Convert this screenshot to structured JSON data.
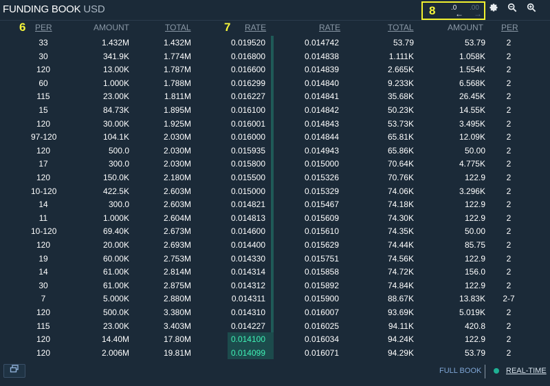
{
  "header": {
    "title": "FUNDING BOOK",
    "currency": "USD",
    "annotation_precision": "8",
    "precision_decrease": ".0",
    "precision_increase": ".00",
    "precision_decrease_arrow": "←",
    "precision_increase_arrow": "→",
    "icons": [
      "gear-icon",
      "zoom-out-icon",
      "zoom-in-icon"
    ]
  },
  "annotations": {
    "per": "6",
    "rate": "7"
  },
  "columns": {
    "bids": {
      "per": "PER",
      "amount": "AMOUNT",
      "total": "TOTAL",
      "rate": "RATE"
    },
    "offers": {
      "rate": "RATE",
      "total": "TOTAL",
      "amount": "AMOUNT",
      "per": "PER"
    }
  },
  "bids": [
    [
      "33",
      "1.432M",
      "1.432M",
      "0.019520"
    ],
    [
      "30",
      "341.9K",
      "1.774M",
      "0.016800"
    ],
    [
      "120",
      "13.00K",
      "1.787M",
      "0.016600"
    ],
    [
      "60",
      "1.000K",
      "1.788M",
      "0.016299"
    ],
    [
      "115",
      "23.00K",
      "1.811M",
      "0.016227"
    ],
    [
      "15",
      "84.73K",
      "1.895M",
      "0.016100"
    ],
    [
      "120",
      "30.00K",
      "1.925M",
      "0.016001"
    ],
    [
      "97-120",
      "104.1K",
      "2.030M",
      "0.016000"
    ],
    [
      "120",
      "500.0",
      "2.030M",
      "0.015935"
    ],
    [
      "17",
      "300.0",
      "2.030M",
      "0.015800"
    ],
    [
      "120",
      "150.0K",
      "2.180M",
      "0.015500"
    ],
    [
      "10-120",
      "422.5K",
      "2.603M",
      "0.015000"
    ],
    [
      "14",
      "300.0",
      "2.603M",
      "0.014821"
    ],
    [
      "11",
      "1.000K",
      "2.604M",
      "0.014813"
    ],
    [
      "10-120",
      "69.40K",
      "2.673M",
      "0.014600"
    ],
    [
      "120",
      "20.00K",
      "2.693M",
      "0.014400"
    ],
    [
      "19",
      "60.00K",
      "2.753M",
      "0.014330"
    ],
    [
      "14",
      "61.00K",
      "2.814M",
      "0.014314"
    ],
    [
      "30",
      "61.00K",
      "2.875M",
      "0.014312"
    ],
    [
      "7",
      "5.000K",
      "2.880M",
      "0.014311"
    ],
    [
      "120",
      "500.0K",
      "3.380M",
      "0.014310"
    ],
    [
      "115",
      "23.00K",
      "3.403M",
      "0.014227"
    ],
    [
      "120",
      "14.40M",
      "17.80M",
      "0.014100"
    ],
    [
      "120",
      "2.006M",
      "19.81M",
      "0.014099"
    ]
  ],
  "offers": [
    [
      "0.014742",
      "53.79",
      "53.79",
      "2"
    ],
    [
      "0.014838",
      "1.111K",
      "1.058K",
      "2"
    ],
    [
      "0.014839",
      "2.665K",
      "1.554K",
      "2"
    ],
    [
      "0.014840",
      "9.233K",
      "6.568K",
      "2"
    ],
    [
      "0.014841",
      "35.68K",
      "26.45K",
      "2"
    ],
    [
      "0.014842",
      "50.23K",
      "14.55K",
      "2"
    ],
    [
      "0.014843",
      "53.73K",
      "3.495K",
      "2"
    ],
    [
      "0.014844",
      "65.81K",
      "12.09K",
      "2"
    ],
    [
      "0.014943",
      "65.86K",
      "50.00",
      "2"
    ],
    [
      "0.015000",
      "70.64K",
      "4.775K",
      "2"
    ],
    [
      "0.015326",
      "70.76K",
      "122.9",
      "2"
    ],
    [
      "0.015329",
      "74.06K",
      "3.296K",
      "2"
    ],
    [
      "0.015467",
      "74.18K",
      "122.9",
      "2"
    ],
    [
      "0.015609",
      "74.30K",
      "122.9",
      "2"
    ],
    [
      "0.015610",
      "74.35K",
      "50.00",
      "2"
    ],
    [
      "0.015629",
      "74.44K",
      "85.75",
      "2"
    ],
    [
      "0.015751",
      "74.56K",
      "122.9",
      "2"
    ],
    [
      "0.015858",
      "74.72K",
      "156.0",
      "2"
    ],
    [
      "0.015892",
      "74.84K",
      "122.9",
      "2"
    ],
    [
      "0.015900",
      "88.67K",
      "13.83K",
      "2-7"
    ],
    [
      "0.016007",
      "93.69K",
      "5.019K",
      "2"
    ],
    [
      "0.016025",
      "94.11K",
      "420.8",
      "2"
    ],
    [
      "0.016034",
      "94.24K",
      "122.9",
      "2"
    ],
    [
      "0.016071",
      "94.29K",
      "53.79",
      "2"
    ]
  ],
  "highlighted_bid_rows": [
    22,
    23
  ],
  "footer": {
    "layout_toggle_icon": "window-restore-icon",
    "full_book": "FULL BOOK",
    "real_time": "REAL-TIME",
    "status_color": "#1fb094"
  }
}
